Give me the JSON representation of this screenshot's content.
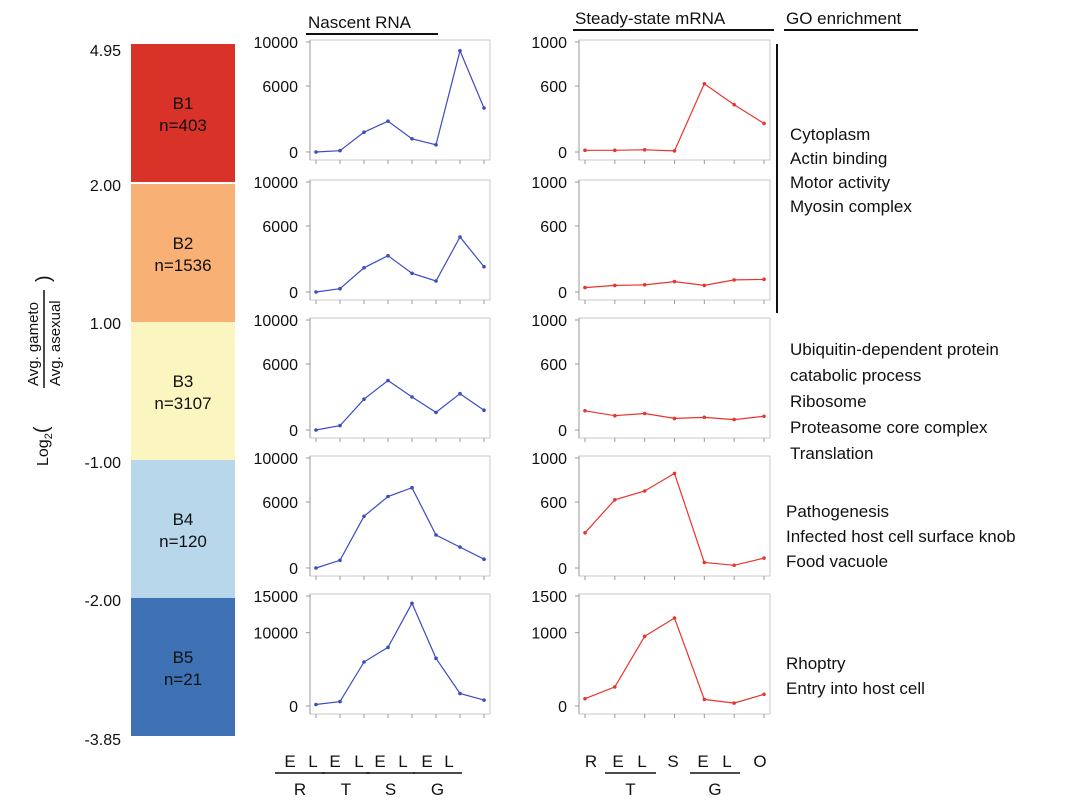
{
  "headers": {
    "nascent": "Nascent RNA",
    "steady": "Steady-state mRNA",
    "go": "GO enrichment"
  },
  "y_axis_label": {
    "prefix": "Log",
    "sub": "2",
    "open": "(",
    "numerator": "Avg. gameto",
    "denominator": "Avg. asexual",
    "close": ")"
  },
  "scale_ticks": [
    "4.95",
    "2.00",
    "1.00",
    "-1.00",
    "-2.00",
    "-3.85"
  ],
  "bins": [
    {
      "name": "B1",
      "n": "n=403",
      "color": "#d93329"
    },
    {
      "name": "B2",
      "n": "n=1536",
      "color": "#f9b074"
    },
    {
      "name": "B3",
      "n": "n=3107",
      "color": "#fbf6c0"
    },
    {
      "name": "B4",
      "n": "n=120",
      "color": "#b8d7ea"
    },
    {
      "name": "B5",
      "n": "n=21",
      "color": "#3f71b5"
    }
  ],
  "go_terms": [
    [
      "Cytoplasm",
      "Actin binding",
      "Motor activity",
      "Myosin complex"
    ],
    [
      "Ubiquitin-dependent protein",
      "catabolic process",
      "Ribosome",
      "Proteasome core complex",
      "Translation"
    ],
    [
      "Pathogenesis",
      "Infected host cell surface knob",
      "Food vacuole"
    ],
    [
      "Rhoptry",
      "Entry into host cell"
    ]
  ],
  "x_labels_nascent": {
    "top": [
      "E",
      "L",
      "E",
      "L",
      "E",
      "L",
      "E",
      "L"
    ],
    "bottom": [
      "R",
      "T",
      "S",
      "G"
    ]
  },
  "x_labels_steady": {
    "top": [
      "R",
      "E",
      "L",
      "S",
      "E",
      "L",
      "O"
    ],
    "bottom": [
      "T",
      "G"
    ]
  },
  "chart_data": [
    {
      "type": "line",
      "panel": "Nascent RNA",
      "bin": "B1",
      "x": [
        1,
        2,
        3,
        4,
        5,
        6,
        7,
        8
      ],
      "values": [
        0,
        120,
        1800,
        2800,
        1200,
        650,
        9200,
        4000
      ],
      "ylim": [
        0,
        10000
      ],
      "yticks": [
        0,
        6000,
        10000
      ],
      "color": "#3b4cc0"
    },
    {
      "type": "line",
      "panel": "Steady-state mRNA",
      "bin": "B1",
      "x": [
        1,
        2,
        3,
        4,
        5,
        6,
        7
      ],
      "values": [
        15,
        15,
        20,
        10,
        620,
        430,
        260
      ],
      "ylim": [
        0,
        1000
      ],
      "yticks": [
        0,
        600,
        1000
      ],
      "color": "#e8352e"
    },
    {
      "type": "line",
      "panel": "Nascent RNA",
      "bin": "B2",
      "x": [
        1,
        2,
        3,
        4,
        5,
        6,
        7,
        8
      ],
      "values": [
        0,
        300,
        2200,
        3300,
        1700,
        1000,
        5000,
        2300
      ],
      "ylim": [
        0,
        10000
      ],
      "yticks": [
        0,
        6000,
        10000
      ],
      "color": "#3b4cc0"
    },
    {
      "type": "line",
      "panel": "Steady-state mRNA",
      "bin": "B2",
      "x": [
        1,
        2,
        3,
        4,
        5,
        6,
        7
      ],
      "values": [
        40,
        60,
        65,
        95,
        60,
        110,
        115
      ],
      "ylim": [
        0,
        1000
      ],
      "yticks": [
        0,
        600,
        1000
      ],
      "color": "#e8352e"
    },
    {
      "type": "line",
      "panel": "Nascent RNA",
      "bin": "B3",
      "x": [
        1,
        2,
        3,
        4,
        5,
        6,
        7,
        8
      ],
      "values": [
        0,
        400,
        2800,
        4500,
        3000,
        1600,
        3300,
        1800
      ],
      "ylim": [
        0,
        10000
      ],
      "yticks": [
        0,
        6000,
        10000
      ],
      "color": "#3b4cc0"
    },
    {
      "type": "line",
      "panel": "Steady-state mRNA",
      "bin": "B3",
      "x": [
        1,
        2,
        3,
        4,
        5,
        6,
        7
      ],
      "values": [
        175,
        130,
        150,
        105,
        115,
        95,
        125
      ],
      "ylim": [
        0,
        1000
      ],
      "yticks": [
        0,
        600,
        1000
      ],
      "color": "#e8352e"
    },
    {
      "type": "line",
      "panel": "Nascent RNA",
      "bin": "B4",
      "x": [
        1,
        2,
        3,
        4,
        5,
        6,
        7,
        8
      ],
      "values": [
        0,
        700,
        4700,
        6500,
        7300,
        3000,
        1900,
        800
      ],
      "ylim": [
        0,
        10000
      ],
      "yticks": [
        0,
        6000,
        10000
      ],
      "color": "#3b4cc0"
    },
    {
      "type": "line",
      "panel": "Steady-state mRNA",
      "bin": "B4",
      "x": [
        1,
        2,
        3,
        4,
        5,
        6,
        7
      ],
      "values": [
        320,
        620,
        700,
        860,
        50,
        25,
        90
      ],
      "ylim": [
        0,
        1000
      ],
      "yticks": [
        0,
        600,
        1000
      ],
      "color": "#e8352e"
    },
    {
      "type": "line",
      "panel": "Nascent RNA",
      "bin": "B5",
      "x": [
        1,
        2,
        3,
        4,
        5,
        6,
        7,
        8
      ],
      "values": [
        200,
        600,
        6000,
        8000,
        14000,
        6500,
        1700,
        800
      ],
      "ylim": [
        0,
        15000
      ],
      "yticks": [
        0,
        10000,
        15000
      ],
      "color": "#3b4cc0"
    },
    {
      "type": "line",
      "panel": "Steady-state mRNA",
      "bin": "B5",
      "x": [
        1,
        2,
        3,
        4,
        5,
        6,
        7
      ],
      "values": [
        100,
        260,
        950,
        1200,
        90,
        40,
        160
      ],
      "ylim": [
        0,
        1500
      ],
      "yticks": [
        0,
        1000,
        1500
      ],
      "color": "#e8352e"
    }
  ]
}
